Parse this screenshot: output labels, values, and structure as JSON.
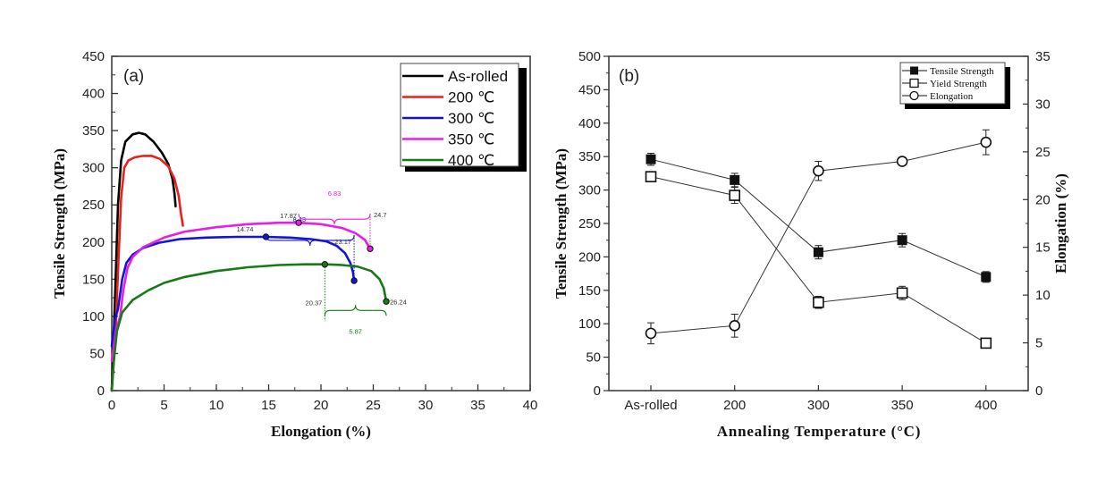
{
  "chart_data": [
    {
      "type": "line",
      "panel_label": "(a)",
      "title": "",
      "xlabel": "Elongation (%)",
      "ylabel": "Tensile Strength (MPa)",
      "xlim": [
        0,
        40
      ],
      "ylim": [
        0,
        450
      ],
      "x_ticks": [
        "0",
        "5",
        "10",
        "15",
        "20",
        "25",
        "30",
        "35",
        "40"
      ],
      "y_ticks": [
        "0",
        "50",
        "100",
        "150",
        "200",
        "250",
        "300",
        "350",
        "400",
        "450"
      ],
      "grid": false,
      "legend_position": "top-right",
      "series": [
        {
          "name": "As-rolled",
          "color": "#000000",
          "points": [
            [
              0,
              0
            ],
            [
              0.3,
              120
            ],
            [
              0.6,
              250
            ],
            [
              0.9,
              310
            ],
            [
              1.3,
              335
            ],
            [
              2.0,
              345
            ],
            [
              2.6,
              347
            ],
            [
              3.2,
              345
            ],
            [
              4.0,
              335
            ],
            [
              4.8,
              320
            ],
            [
              5.4,
              305
            ],
            [
              5.8,
              285
            ],
            [
              6.0,
              265
            ],
            [
              6.1,
              248
            ]
          ]
        },
        {
          "name": "200 ℃",
          "color": "#e8211b",
          "points": [
            [
              0,
              0
            ],
            [
              0.3,
              60
            ],
            [
              0.6,
              160
            ],
            [
              0.9,
              260
            ],
            [
              1.2,
              300
            ],
            [
              1.6,
              310
            ],
            [
              2.2,
              314
            ],
            [
              3.0,
              316
            ],
            [
              3.8,
              316
            ],
            [
              4.6,
              312
            ],
            [
              5.4,
              302
            ],
            [
              6.0,
              285
            ],
            [
              6.4,
              262
            ],
            [
              6.6,
              240
            ],
            [
              6.8,
              222
            ]
          ]
        },
        {
          "name": "300 ℃",
          "color": "#1414d6",
          "points": [
            [
              0,
              60
            ],
            [
              0.3,
              95
            ],
            [
              0.6,
              110
            ],
            [
              1.0,
              150
            ],
            [
              1.4,
              172
            ],
            [
              2.0,
              183
            ],
            [
              3.0,
              192
            ],
            [
              4.5,
              199
            ],
            [
              6.5,
              204
            ],
            [
              9,
              206
            ],
            [
              12,
              207
            ],
            [
              14.74,
              207
            ],
            [
              17,
              206
            ],
            [
              19,
              204
            ],
            [
              20.5,
              201
            ],
            [
              21.5,
              195
            ],
            [
              22.3,
              185
            ],
            [
              22.8,
              172
            ],
            [
              23.05,
              160
            ],
            [
              23.17,
              148
            ]
          ]
        },
        {
          "name": "350 ℃",
          "color": "#e61ee6",
          "points": [
            [
              0,
              40
            ],
            [
              0.4,
              80
            ],
            [
              0.8,
              100
            ],
            [
              1.1,
              135
            ],
            [
              1.5,
              165
            ],
            [
              2.0,
              180
            ],
            [
              3.0,
              193
            ],
            [
              5,
              206
            ],
            [
              7,
              214
            ],
            [
              10,
              220
            ],
            [
              13,
              224
            ],
            [
              16,
              226
            ],
            [
              17.87,
              226
            ],
            [
              20,
              224
            ],
            [
              22,
              219
            ],
            [
              23.3,
              212
            ],
            [
              24.2,
              203
            ],
            [
              24.7,
              191
            ]
          ]
        },
        {
          "name": "400 ℃",
          "color": "#167a16",
          "points": [
            [
              0,
              0
            ],
            [
              0.2,
              40
            ],
            [
              0.5,
              80
            ],
            [
              1.0,
              105
            ],
            [
              2.0,
              122
            ],
            [
              3.5,
              135
            ],
            [
              5,
              145
            ],
            [
              7,
              153
            ],
            [
              10,
              161
            ],
            [
              13,
              166
            ],
            [
              16,
              169
            ],
            [
              18.5,
              170
            ],
            [
              20.37,
              170
            ],
            [
              22,
              169
            ],
            [
              23.5,
              167
            ],
            [
              24.8,
              161
            ],
            [
              25.6,
              150
            ],
            [
              26.0,
              138
            ],
            [
              26.24,
              120
            ]
          ]
        }
      ],
      "markers": [
        {
          "series": "300 ℃",
          "x": 14.74,
          "y": 207
        },
        {
          "series": "300 ℃",
          "x": 23.17,
          "y": 148
        },
        {
          "series": "350 ℃",
          "x": 17.87,
          "y": 226
        },
        {
          "series": "350 ℃",
          "x": 24.7,
          "y": 191
        },
        {
          "series": "400 ℃",
          "x": 20.37,
          "y": 170
        },
        {
          "series": "400 ℃",
          "x": 26.24,
          "y": 120
        }
      ],
      "annotations": {
        "blue_start": "14.74",
        "blue_end": "23.17",
        "blue_diff": "8.43",
        "magenta_start": "17.87",
        "magenta_end": "24.7",
        "magenta_diff": "6.83",
        "green_start": "20.37",
        "green_end": "26.24",
        "green_diff": "5.87"
      }
    },
    {
      "type": "line",
      "panel_label": "(b)",
      "title": "",
      "xlabel": "Annealing Temperature (°C)",
      "ylabel": "Tensile Strength (MPa)",
      "y2label": "Elongation (%)",
      "categories": [
        "As-rolled",
        "200",
        "300",
        "350",
        "400"
      ],
      "ylim": [
        0,
        500
      ],
      "y2lim": [
        0,
        35
      ],
      "y_ticks": [
        "0",
        "50",
        "100",
        "150",
        "200",
        "250",
        "300",
        "350",
        "400",
        "450",
        "500"
      ],
      "y2_ticks": [
        "0",
        "5",
        "10",
        "15",
        "20",
        "25",
        "30",
        "35"
      ],
      "grid": false,
      "legend_position": "top-right",
      "series": [
        {
          "name": "Tensile Strength",
          "axis": "left",
          "marker": "filled-square",
          "values": [
            346,
            315,
            207,
            225,
            170
          ],
          "errors": [
            9,
            10,
            10,
            10,
            8
          ]
        },
        {
          "name": "Yield Strength",
          "axis": "left",
          "marker": "open-square",
          "values": [
            320,
            292,
            132,
            146,
            71
          ],
          "errors": [
            7,
            12,
            9,
            10,
            7
          ]
        },
        {
          "name": "Elongation",
          "axis": "right",
          "marker": "open-circle",
          "values": [
            6.0,
            6.8,
            23.0,
            24.0,
            26.0
          ],
          "errors": [
            1.1,
            1.2,
            1.0,
            0.4,
            1.3
          ]
        }
      ]
    }
  ]
}
